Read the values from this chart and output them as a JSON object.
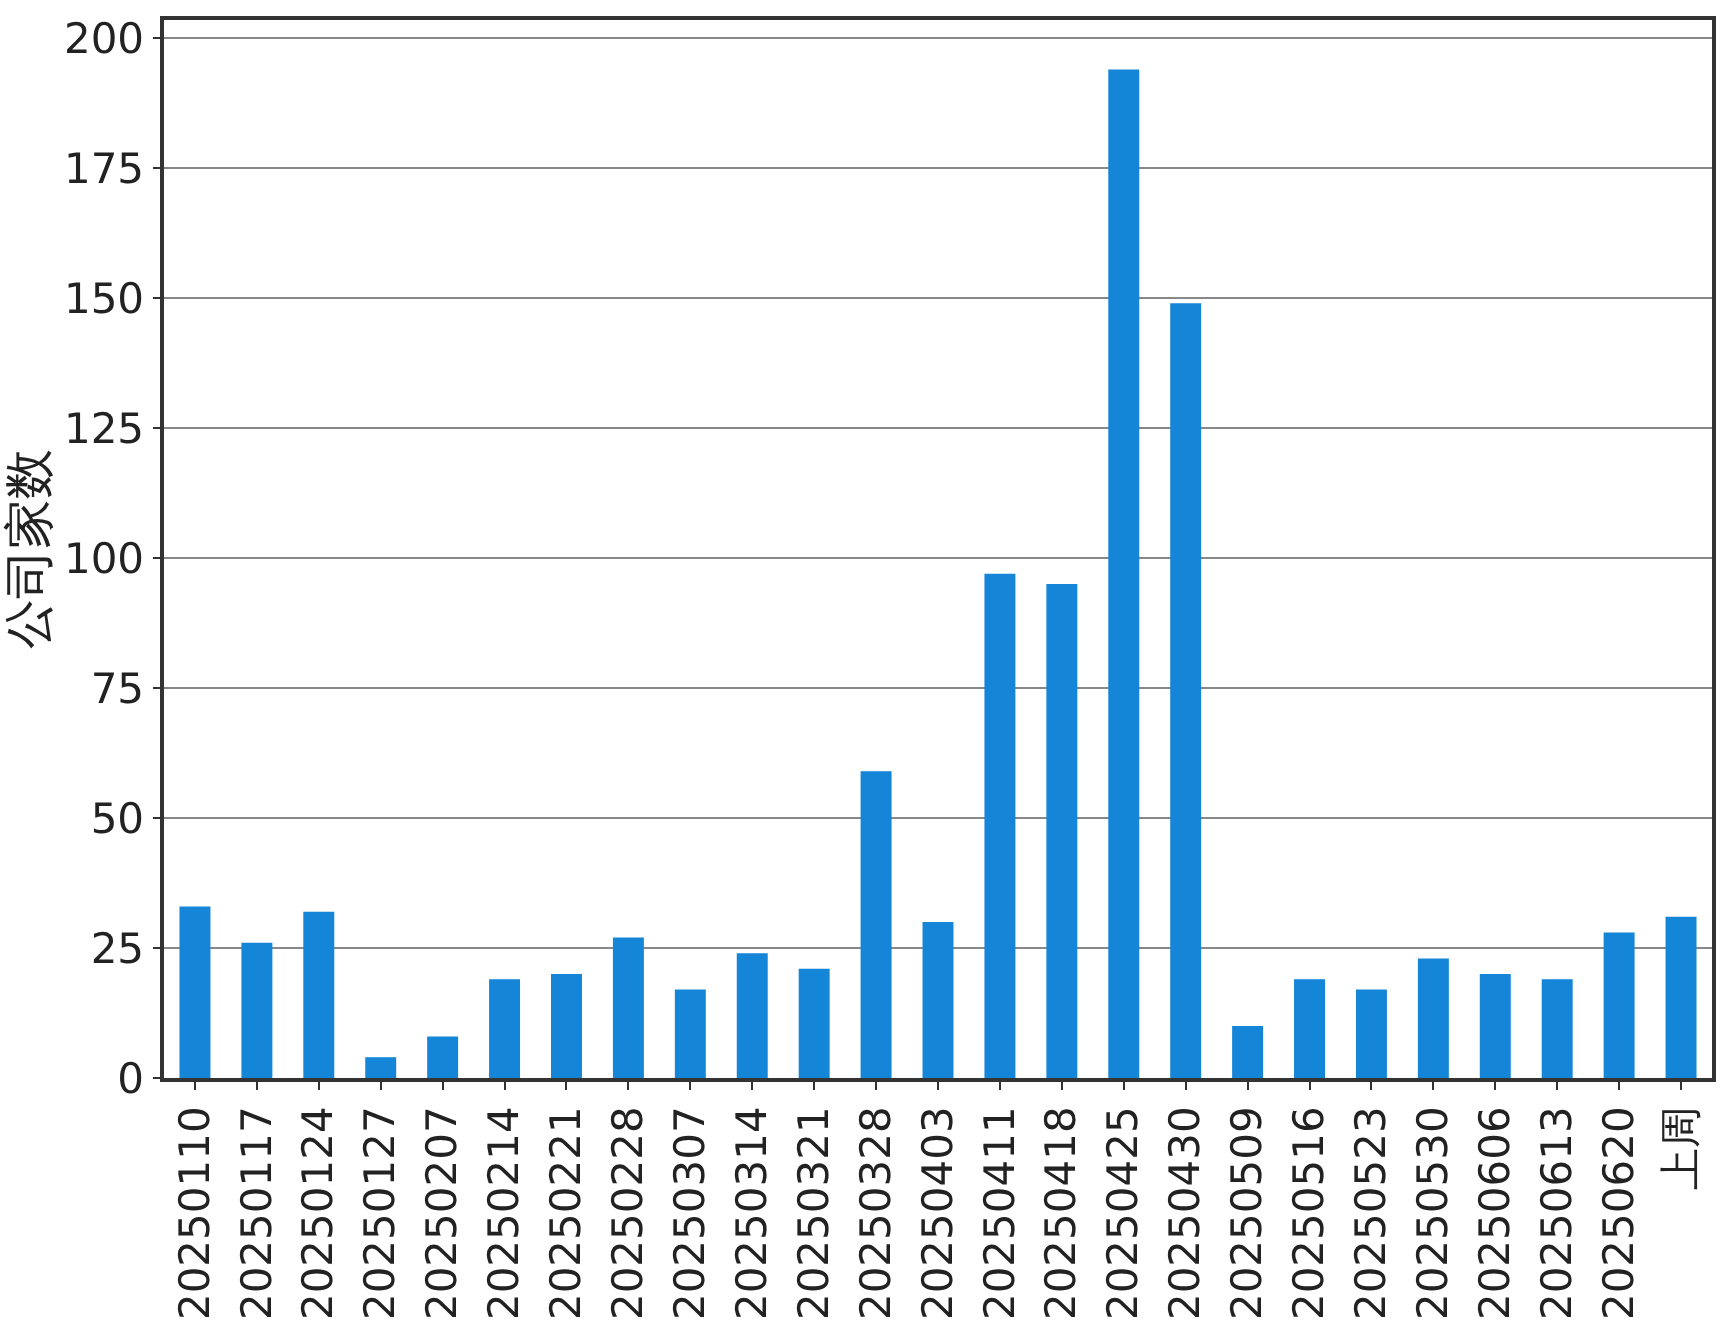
{
  "chart_data": {
    "type": "bar",
    "ylabel": "公司家数",
    "categories": [
      "20250110",
      "20250117",
      "20250124",
      "20250127",
      "20250207",
      "20250214",
      "20250221",
      "20250228",
      "20250307",
      "20250314",
      "20250321",
      "20250328",
      "20250403",
      "20250411",
      "20250418",
      "20250425",
      "20250430",
      "20250509",
      "20250516",
      "20250523",
      "20250530",
      "20250606",
      "20250613",
      "20250620",
      "上周"
    ],
    "values": [
      33,
      26,
      32,
      4,
      8,
      19,
      20,
      27,
      17,
      24,
      21,
      59,
      30,
      97,
      95,
      194,
      149,
      10,
      19,
      17,
      23,
      20,
      19,
      28,
      31
    ],
    "color": "#1585d8",
    "ylim": [
      0,
      203.5
    ],
    "yticks": [
      0,
      25,
      50,
      75,
      100,
      125,
      150,
      175,
      200
    ],
    "grid": "y"
  }
}
